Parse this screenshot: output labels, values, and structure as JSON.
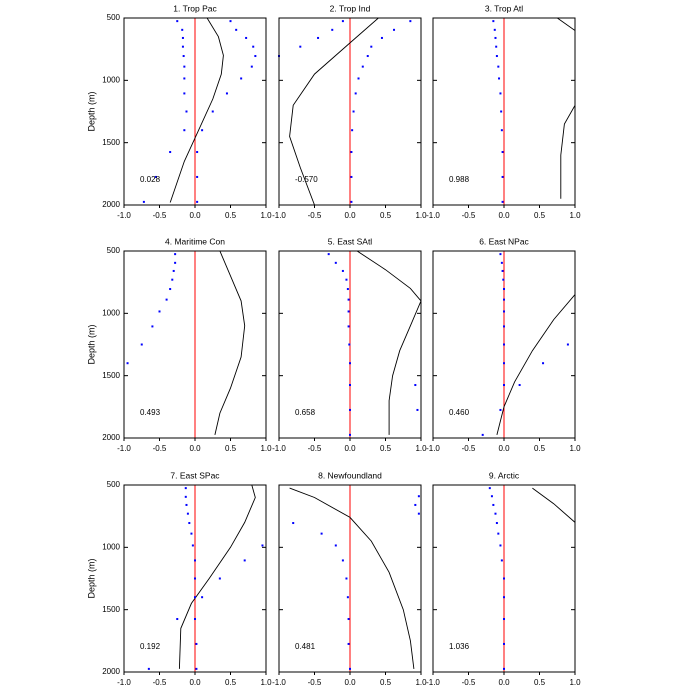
{
  "chart_data": [
    {
      "type": "scatter",
      "title": "1. Trop Pac",
      "ylabel": "Depth (m)",
      "annotation": "0.028",
      "show_ytick_labels": true,
      "xlim": [
        -1,
        1
      ],
      "ylim": [
        500,
        2000
      ],
      "y_inverted": true,
      "xticks": [
        {
          "value": -1,
          "label": "-1.0"
        },
        -0.5,
        {
          "value": 0,
          "label": "0.0"
        },
        0.5,
        {
          "value": 1,
          "label": "1.0"
        }
      ],
      "yticks": [
        500,
        1000,
        1500,
        2000
      ],
      "refline": {
        "x": 0,
        "color": "#ff0000"
      },
      "series": [
        {
          "color": "#0000ff",
          "x": [
            -0.25,
            -0.18,
            -0.17,
            -0.17,
            -0.16,
            -0.15,
            -0.15,
            -0.15,
            -0.12,
            -0.15,
            -0.35,
            -0.55,
            -0.72
          ],
          "y": [
            525,
            595,
            660,
            730,
            805,
            890,
            985,
            1105,
            1250,
            1400,
            1575,
            1775,
            1975
          ]
        },
        {
          "color": "#0000ff",
          "x": [
            0.5,
            0.58,
            0.72,
            0.82,
            0.85,
            0.8,
            0.65,
            0.45,
            0.25,
            0.1,
            0.03,
            0.03,
            0.03
          ],
          "y": [
            525,
            595,
            660,
            730,
            805,
            890,
            985,
            1105,
            1250,
            1400,
            1575,
            1775,
            1975
          ]
        }
      ],
      "line": {
        "color": "#000000",
        "x": [
          0.17,
          0.33,
          0.4,
          0.37,
          0.25,
          0.05,
          -0.15,
          -0.35
        ],
        "y": [
          500,
          650,
          800,
          950,
          1150,
          1400,
          1650,
          1980
        ]
      }
    },
    {
      "type": "scatter",
      "title": "2. Trop Ind",
      "annotation": "-0.570",
      "show_ytick_labels": false,
      "xlim": [
        -1,
        1
      ],
      "ylim": [
        500,
        2000
      ],
      "y_inverted": true,
      "xticks": [
        {
          "value": -1,
          "label": "-1.0"
        },
        -0.5,
        {
          "value": 0,
          "label": "0.0"
        },
        0.5,
        {
          "value": 1,
          "label": "1.0"
        }
      ],
      "yticks": [
        500,
        1000,
        1500,
        2000
      ],
      "refline": {
        "x": 0,
        "color": "#ff0000"
      },
      "series": [
        {
          "color": "#0000ff",
          "x": [
            0.85,
            0.62,
            0.45,
            0.3,
            0.25,
            0.18,
            0.12,
            0.08,
            0.05,
            0.03,
            0.02,
            0.02,
            0.02
          ],
          "y": [
            525,
            595,
            660,
            730,
            805,
            890,
            985,
            1105,
            1250,
            1400,
            1575,
            1775,
            1975
          ]
        },
        {
          "color": "#0000ff",
          "x": [
            -0.1,
            -0.25,
            -0.45,
            -0.7,
            -1.0
          ],
          "y": [
            525,
            595,
            660,
            730,
            805
          ]
        }
      ],
      "line": {
        "color": "#000000",
        "x": [
          0.4,
          0.0,
          -0.5,
          -0.8,
          -0.85,
          -0.7,
          -0.5
        ],
        "y": [
          500,
          700,
          950,
          1200,
          1450,
          1700,
          2000
        ]
      }
    },
    {
      "type": "scatter",
      "title": "3. Trop Atl",
      "annotation": "0.988",
      "show_ytick_labels": false,
      "xlim": [
        -1,
        1
      ],
      "ylim": [
        500,
        2000
      ],
      "y_inverted": true,
      "xticks": [
        {
          "value": -1,
          "label": "-1.0"
        },
        -0.5,
        {
          "value": 0,
          "label": "0.0"
        },
        0.5,
        {
          "value": 1,
          "label": "1.0"
        }
      ],
      "yticks": [
        500,
        1000,
        1500,
        2000
      ],
      "refline": {
        "x": 0,
        "color": "#ff0000"
      },
      "series": [
        {
          "color": "#0000ff",
          "x": [
            -0.15,
            -0.13,
            -0.12,
            -0.11,
            -0.1,
            -0.08,
            -0.07,
            -0.05,
            -0.04,
            -0.03,
            -0.02,
            -0.02,
            -0.02
          ],
          "y": [
            525,
            595,
            660,
            730,
            805,
            890,
            985,
            1105,
            1250,
            1400,
            1575,
            1775,
            1975
          ]
        }
      ],
      "line": {
        "color": "#000000",
        "x": [
          0.75,
          1.0,
          null,
          1.0,
          0.85,
          0.8,
          0.8
        ],
        "y": [
          500,
          600,
          null,
          1200,
          1350,
          1600,
          1950
        ]
      }
    },
    {
      "type": "scatter",
      "title": "4. Maritime Con",
      "ylabel": "Depth (m)",
      "annotation": "0.493",
      "show_ytick_labels": true,
      "xlim": [
        -1,
        1
      ],
      "ylim": [
        500,
        2000
      ],
      "y_inverted": true,
      "xticks": [
        {
          "value": -1,
          "label": "-1.0"
        },
        -0.5,
        {
          "value": 0,
          "label": "0.0"
        },
        0.5,
        {
          "value": 1,
          "label": "1.0"
        }
      ],
      "yticks": [
        500,
        1000,
        1500,
        2000
      ],
      "refline": {
        "x": 0,
        "color": "#ff0000"
      },
      "series": [
        {
          "color": "#0000ff",
          "x": [
            -0.28,
            -0.28,
            -0.3,
            -0.32,
            -0.35,
            -0.4,
            -0.5,
            -0.6,
            -0.75,
            -0.95
          ],
          "y": [
            525,
            595,
            660,
            730,
            805,
            890,
            985,
            1105,
            1250,
            1400
          ]
        }
      ],
      "line": {
        "color": "#000000",
        "x": [
          0.35,
          0.5,
          0.65,
          0.7,
          0.65,
          0.5,
          0.35,
          0.28
        ],
        "y": [
          500,
          700,
          900,
          1100,
          1350,
          1600,
          1800,
          1975
        ]
      }
    },
    {
      "type": "scatter",
      "title": "5. East SAtl",
      "annotation": "0.658",
      "show_ytick_labels": false,
      "xlim": [
        -1,
        1
      ],
      "ylim": [
        500,
        2000
      ],
      "y_inverted": true,
      "xticks": [
        {
          "value": -1,
          "label": "-1.0"
        },
        -0.5,
        {
          "value": 0,
          "label": "0.0"
        },
        0.5,
        {
          "value": 1,
          "label": "1.0"
        }
      ],
      "yticks": [
        500,
        1000,
        1500,
        2000
      ],
      "refline": {
        "x": 0,
        "color": "#ff0000"
      },
      "series": [
        {
          "color": "#0000ff",
          "x": [
            -0.3,
            -0.2,
            -0.1,
            -0.05,
            -0.03,
            -0.02,
            -0.02,
            -0.02,
            -0.01,
            0,
            0,
            0,
            0
          ],
          "y": [
            525,
            595,
            660,
            730,
            805,
            890,
            985,
            1105,
            1250,
            1400,
            1575,
            1775,
            1975
          ]
        },
        {
          "color": "#0000ff",
          "x": [
            0.92,
            0.95
          ],
          "y": [
            1575,
            1775
          ]
        }
      ],
      "line": {
        "color": "#000000",
        "x": [
          0.1,
          0.5,
          0.85,
          1.0,
          0.85,
          0.7,
          0.6,
          0.55,
          0.55
        ],
        "y": [
          500,
          650,
          800,
          900,
          1100,
          1300,
          1500,
          1700,
          1975
        ]
      }
    },
    {
      "type": "scatter",
      "title": "6. East NPac",
      "annotation": "0.460",
      "show_ytick_labels": false,
      "xlim": [
        -1,
        1
      ],
      "ylim": [
        500,
        2000
      ],
      "y_inverted": true,
      "xticks": [
        {
          "value": -1,
          "label": "-1.0"
        },
        -0.5,
        {
          "value": 0,
          "label": "0.0"
        },
        0.5,
        {
          "value": 1,
          "label": "1.0"
        }
      ],
      "yticks": [
        500,
        1000,
        1500,
        2000
      ],
      "refline": {
        "x": 0,
        "color": "#ff0000"
      },
      "series": [
        {
          "color": "#0000ff",
          "x": [
            -0.05,
            -0.03,
            -0.02,
            -0.01,
            0,
            0,
            0,
            0,
            0,
            0,
            0,
            -0.05,
            -0.3
          ],
          "y": [
            525,
            595,
            660,
            730,
            805,
            890,
            985,
            1105,
            1250,
            1400,
            1575,
            1775,
            1975
          ]
        },
        {
          "color": "#0000ff",
          "x": [
            0.9,
            0.55,
            0.22
          ],
          "y": [
            1250,
            1400,
            1575
          ]
        }
      ],
      "line": {
        "color": "#000000",
        "x": [
          1.0,
          0.7,
          0.4,
          0.15,
          0,
          -0.1
        ],
        "y": [
          850,
          1050,
          1300,
          1550,
          1750,
          1975
        ]
      }
    },
    {
      "type": "scatter",
      "title": "7. East SPac",
      "ylabel": "Depth (m)",
      "annotation": "0.192",
      "show_ytick_labels": true,
      "xlim": [
        -1,
        1
      ],
      "ylim": [
        500,
        2000
      ],
      "y_inverted": true,
      "xticks": [
        {
          "value": -1,
          "label": "-1.0"
        },
        -0.5,
        {
          "value": 0,
          "label": "0.0"
        },
        0.5,
        {
          "value": 1,
          "label": "1.0"
        }
      ],
      "yticks": [
        500,
        1000,
        1500,
        2000
      ],
      "refline": {
        "x": 0,
        "color": "#ff0000"
      },
      "series": [
        {
          "color": "#0000ff",
          "x": [
            -0.13,
            -0.13,
            -0.12,
            -0.1,
            -0.08,
            -0.05,
            -0.03,
            0,
            0,
            0,
            0,
            0.02,
            0.02
          ],
          "y": [
            525,
            595,
            660,
            730,
            805,
            890,
            985,
            1105,
            1250,
            1400,
            1575,
            1775,
            1975
          ]
        },
        {
          "color": "#0000ff",
          "x": [
            0.95,
            0.7,
            0.35,
            0.1,
            -0.25,
            -0.65
          ],
          "y": [
            985,
            1105,
            1250,
            1400,
            1575,
            1975
          ]
        }
      ],
      "line": {
        "color": "#000000",
        "x": [
          0.8,
          0.85,
          0.7,
          0.5,
          0.2,
          -0.05,
          -0.2,
          -0.22
        ],
        "y": [
          500,
          600,
          800,
          1000,
          1250,
          1450,
          1650,
          1975
        ]
      }
    },
    {
      "type": "scatter",
      "title": "8. Newfoundland",
      "annotation": "0.481",
      "show_ytick_labels": false,
      "xlim": [
        -1,
        1
      ],
      "ylim": [
        500,
        2000
      ],
      "y_inverted": true,
      "xticks": [
        {
          "value": -1,
          "label": "-1.0"
        },
        -0.5,
        {
          "value": 0,
          "label": "0.0"
        },
        0.5,
        {
          "value": 1,
          "label": "1.0"
        }
      ],
      "yticks": [
        500,
        1000,
        1500,
        2000
      ],
      "refline": {
        "x": 0,
        "color": "#ff0000"
      },
      "series": [
        {
          "color": "#0000ff",
          "x": [
            0.97,
            0.92,
            0.97
          ],
          "y": [
            590,
            660,
            730
          ]
        },
        {
          "color": "#0000ff",
          "x": [
            -0.8,
            -0.4,
            -0.2,
            -0.1,
            -0.05,
            -0.03,
            -0.02,
            -0.02,
            0
          ],
          "y": [
            805,
            890,
            985,
            1105,
            1250,
            1400,
            1575,
            1775,
            1975
          ]
        }
      ],
      "line": {
        "color": "#000000",
        "x": [
          -0.85,
          -0.5,
          0,
          0.3,
          0.55,
          0.75,
          0.85,
          0.9
        ],
        "y": [
          525,
          600,
          760,
          950,
          1200,
          1500,
          1750,
          1975
        ]
      }
    },
    {
      "type": "scatter",
      "title": "9. Arctic",
      "annotation": "1.036",
      "show_ytick_labels": false,
      "xlim": [
        -1,
        1
      ],
      "ylim": [
        500,
        2000
      ],
      "y_inverted": true,
      "xticks": [
        {
          "value": -1,
          "label": "-1.0"
        },
        -0.5,
        {
          "value": 0,
          "label": "0.0"
        },
        0.5,
        {
          "value": 1,
          "label": "1.0"
        }
      ],
      "yticks": [
        500,
        1000,
        1500,
        2000
      ],
      "refline": {
        "x": 0,
        "color": "#ff0000"
      },
      "series": [
        {
          "color": "#0000ff",
          "x": [
            -0.2,
            -0.17,
            -0.15,
            -0.12,
            -0.1,
            -0.08,
            -0.05,
            -0.03,
            0,
            0,
            0,
            0,
            0
          ],
          "y": [
            525,
            590,
            660,
            730,
            805,
            890,
            985,
            1105,
            1250,
            1400,
            1575,
            1775,
            1975
          ]
        }
      ],
      "line": {
        "color": "#000000",
        "x": [
          0.4,
          0.7,
          1.0
        ],
        "y": [
          525,
          650,
          800
        ]
      }
    }
  ]
}
